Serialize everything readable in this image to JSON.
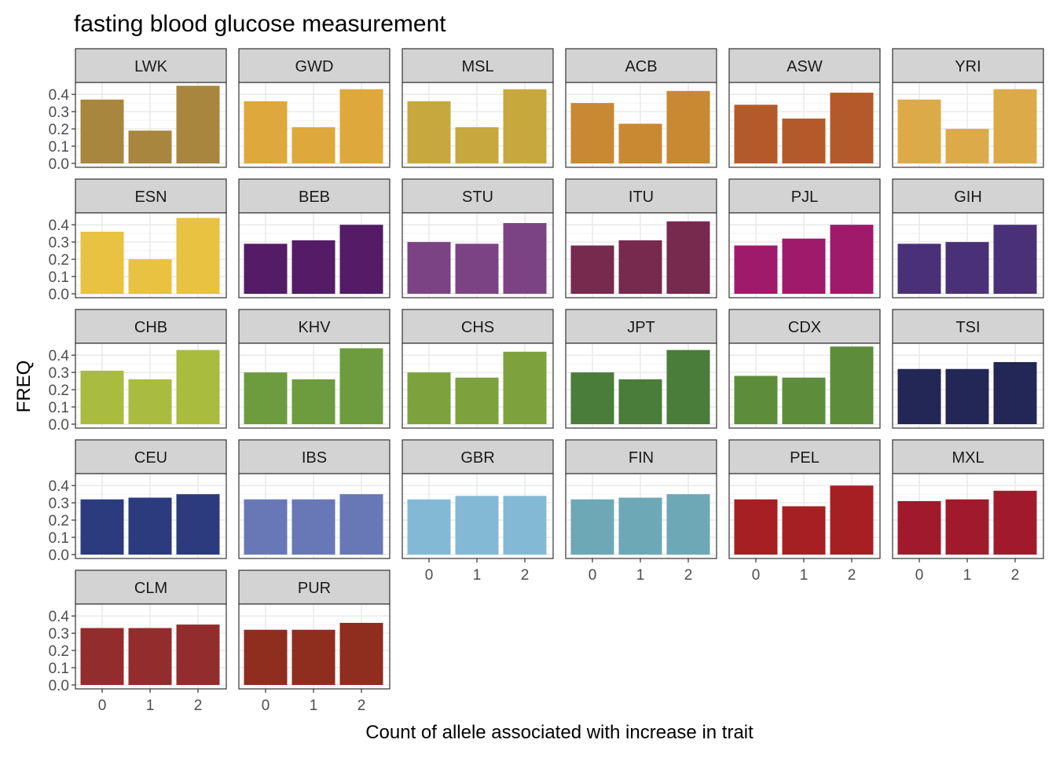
{
  "chart_data": {
    "type": "bar",
    "title": "fasting blood glucose measurement",
    "xlabel": "Count of allele associated with increase in trait",
    "ylabel": "FREQ",
    "categories": [
      "0",
      "1",
      "2"
    ],
    "y_ticks": [
      "0.0",
      "0.1",
      "0.2",
      "0.3",
      "0.4"
    ],
    "ylim": [
      0,
      0.46
    ],
    "grid": true,
    "ncol": 6,
    "panels": [
      {
        "name": "LWK",
        "color": "#A8863D",
        "values": [
          0.37,
          0.19,
          0.45
        ]
      },
      {
        "name": "GWD",
        "color": "#DEA83C",
        "values": [
          0.36,
          0.21,
          0.43
        ]
      },
      {
        "name": "MSL",
        "color": "#C6A83E",
        "values": [
          0.36,
          0.21,
          0.43
        ]
      },
      {
        "name": "ACB",
        "color": "#C98832",
        "values": [
          0.35,
          0.23,
          0.42
        ]
      },
      {
        "name": "ASW",
        "color": "#B45A2A",
        "values": [
          0.34,
          0.26,
          0.41
        ]
      },
      {
        "name": "YRI",
        "color": "#DCAA48",
        "values": [
          0.37,
          0.2,
          0.43
        ]
      },
      {
        "name": "ESN",
        "color": "#E8C240",
        "values": [
          0.36,
          0.2,
          0.44
        ]
      },
      {
        "name": "BEB",
        "color": "#541B66",
        "values": [
          0.29,
          0.31,
          0.4
        ]
      },
      {
        "name": "STU",
        "color": "#7C4384",
        "values": [
          0.3,
          0.29,
          0.41
        ]
      },
      {
        "name": "ITU",
        "color": "#772A4D",
        "values": [
          0.28,
          0.31,
          0.42
        ]
      },
      {
        "name": "PJL",
        "color": "#A01A6C",
        "values": [
          0.28,
          0.32,
          0.4
        ]
      },
      {
        "name": "GIH",
        "color": "#4A3177",
        "values": [
          0.29,
          0.3,
          0.4
        ]
      },
      {
        "name": "CHB",
        "color": "#A9BC3F",
        "values": [
          0.31,
          0.26,
          0.43
        ]
      },
      {
        "name": "KHV",
        "color": "#6C9C3E",
        "values": [
          0.3,
          0.26,
          0.44
        ]
      },
      {
        "name": "CHS",
        "color": "#7DA13D",
        "values": [
          0.3,
          0.27,
          0.42
        ]
      },
      {
        "name": "JPT",
        "color": "#4A7C3A",
        "values": [
          0.3,
          0.26,
          0.43
        ]
      },
      {
        "name": "CDX",
        "color": "#5D8D3B",
        "values": [
          0.28,
          0.27,
          0.45
        ]
      },
      {
        "name": "TSI",
        "color": "#232756",
        "values": [
          0.32,
          0.32,
          0.36
        ]
      },
      {
        "name": "CEU",
        "color": "#2C3B7D",
        "values": [
          0.32,
          0.33,
          0.35
        ]
      },
      {
        "name": "IBS",
        "color": "#6878B6",
        "values": [
          0.32,
          0.32,
          0.35
        ]
      },
      {
        "name": "GBR",
        "color": "#84B9D6",
        "values": [
          0.32,
          0.34,
          0.34
        ]
      },
      {
        "name": "FIN",
        "color": "#6DA8B6",
        "values": [
          0.32,
          0.33,
          0.35
        ]
      },
      {
        "name": "PEL",
        "color": "#A61F22",
        "values": [
          0.32,
          0.28,
          0.4
        ]
      },
      {
        "name": "MXL",
        "color": "#A11A2C",
        "values": [
          0.31,
          0.32,
          0.37
        ]
      },
      {
        "name": "CLM",
        "color": "#932C2D",
        "values": [
          0.33,
          0.33,
          0.35
        ]
      },
      {
        "name": "PUR",
        "color": "#8F2D1E",
        "values": [
          0.32,
          0.32,
          0.36
        ]
      }
    ]
  }
}
